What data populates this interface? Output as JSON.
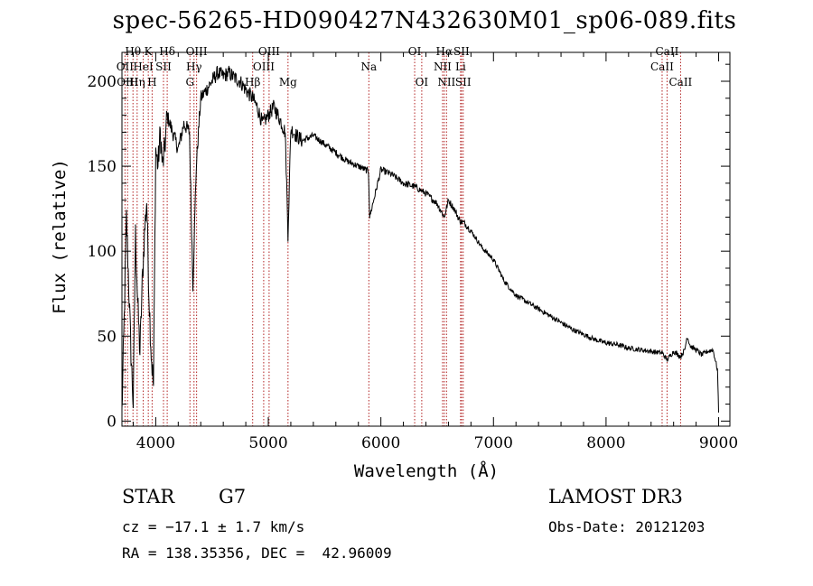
{
  "chart_data": {
    "type": "line",
    "title": "spec-56265-HD090427N432630M01_sp06-089.fits",
    "xlabel": "Wavelength (Å)",
    "ylabel": "Flux (relative)",
    "xlim": [
      3700,
      9100
    ],
    "ylim": [
      -3,
      217
    ],
    "xticks": [
      4000,
      5000,
      6000,
      7000,
      8000,
      9000
    ],
    "yticks": [
      0,
      50,
      100,
      150,
      200
    ],
    "series": [
      {
        "name": "spectrum",
        "x": [
          3700,
          3720,
          3740,
          3760,
          3780,
          3800,
          3820,
          3840,
          3860,
          3880,
          3900,
          3920,
          3940,
          3960,
          3980,
          4000,
          4020,
          4040,
          4060,
          4080,
          4100,
          4150,
          4200,
          4250,
          4300,
          4330,
          4360,
          4400,
          4450,
          4500,
          4550,
          4600,
          4650,
          4700,
          4750,
          4800,
          4861,
          4900,
          4950,
          5000,
          5050,
          5100,
          5150,
          5175,
          5200,
          5250,
          5300,
          5400,
          5500,
          5600,
          5700,
          5800,
          5890,
          5900,
          6000,
          6100,
          6200,
          6300,
          6400,
          6500,
          6563,
          6600,
          6650,
          6700,
          6750,
          6800,
          6900,
          7000,
          7100,
          7200,
          7300,
          7400,
          7500,
          7600,
          7700,
          7800,
          7900,
          8000,
          8100,
          8200,
          8300,
          8400,
          8500,
          8542,
          8600,
          8662,
          8700,
          8720,
          8750,
          8800,
          8850,
          8900,
          8950,
          8990,
          9000
        ],
        "y": [
          5,
          60,
          120,
          80,
          40,
          10,
          110,
          70,
          40,
          80,
          110,
          130,
          75,
          40,
          20,
          160,
          150,
          170,
          150,
          160,
          180,
          170,
          160,
          175,
          170,
          80,
          150,
          190,
          195,
          200,
          205,
          203,
          205,
          202,
          200,
          195,
          190,
          185,
          175,
          180,
          185,
          178,
          170,
          110,
          172,
          168,
          165,
          168,
          163,
          158,
          153,
          150,
          147,
          120,
          148,
          145,
          140,
          138,
          134,
          128,
          120,
          130,
          125,
          118,
          116,
          112,
          102,
          95,
          82,
          74,
          70,
          66,
          62,
          58,
          54,
          51,
          48,
          46,
          45,
          43,
          42,
          41,
          40,
          36,
          41,
          38,
          42,
          50,
          44,
          42,
          39,
          41,
          42,
          30,
          5
        ]
      }
    ],
    "lines": [
      {
        "name": "Hθ",
        "wave": 3798,
        "row": 1
      },
      {
        "name": "OII",
        "wave": 3727,
        "row": 2
      },
      {
        "name": "OIII",
        "wave": 3750,
        "row": 3
      },
      {
        "name": "HeI",
        "wave": 3889,
        "row": 2
      },
      {
        "name": "Hη",
        "wave": 3835,
        "row": 3
      },
      {
        "name": "K",
        "wave": 3934,
        "row": 1
      },
      {
        "name": "SII",
        "wave": 4069,
        "row": 2
      },
      {
        "name": "H",
        "wave": 3968,
        "row": 3
      },
      {
        "name": "Hδ",
        "wave": 4102,
        "row": 1
      },
      {
        "name": "OIII",
        "wave": 4363,
        "row": 1
      },
      {
        "name": "Hγ",
        "wave": 4340,
        "row": 2
      },
      {
        "name": "G",
        "wave": 4304,
        "row": 3
      },
      {
        "name": "OIII",
        "wave": 5007,
        "row": 1
      },
      {
        "name": "OIII",
        "wave": 4959,
        "row": 2
      },
      {
        "name": "Hβ",
        "wave": 4861,
        "row": 3
      },
      {
        "name": "Mg",
        "wave": 5175,
        "row": 3
      },
      {
        "name": "Na",
        "wave": 5893,
        "row": 2
      },
      {
        "name": "OI",
        "wave": 6300,
        "row": 1
      },
      {
        "name": "OI",
        "wave": 6363,
        "row": 3
      },
      {
        "name": "Hα",
        "wave": 6563,
        "row": 1
      },
      {
        "name": "NII",
        "wave": 6548,
        "row": 2
      },
      {
        "name": "NII",
        "wave": 6583,
        "row": 3
      },
      {
        "name": "SII",
        "wave": 6716,
        "row": 1
      },
      {
        "name": "Li",
        "wave": 6708,
        "row": 2
      },
      {
        "name": "SII",
        "wave": 6731,
        "row": 3
      },
      {
        "name": "CaII",
        "wave": 8542,
        "row": 1
      },
      {
        "name": "CaII",
        "wave": 8498,
        "row": 2
      },
      {
        "name": "CaII",
        "wave": 8662,
        "row": 3
      }
    ],
    "colors": {
      "spectrum": "#000000",
      "lines": "#b22222",
      "axes": "#000000"
    }
  },
  "info": {
    "class_label": "STAR",
    "subclass": "G7",
    "survey": "LAMOST DR3",
    "cz_text": "cz = −17.1 ± 1.7 km/s",
    "obs_date_text": "Obs-Date: 20121203",
    "radec_text": "RA = 138.35356, DEC =  42.96009"
  }
}
